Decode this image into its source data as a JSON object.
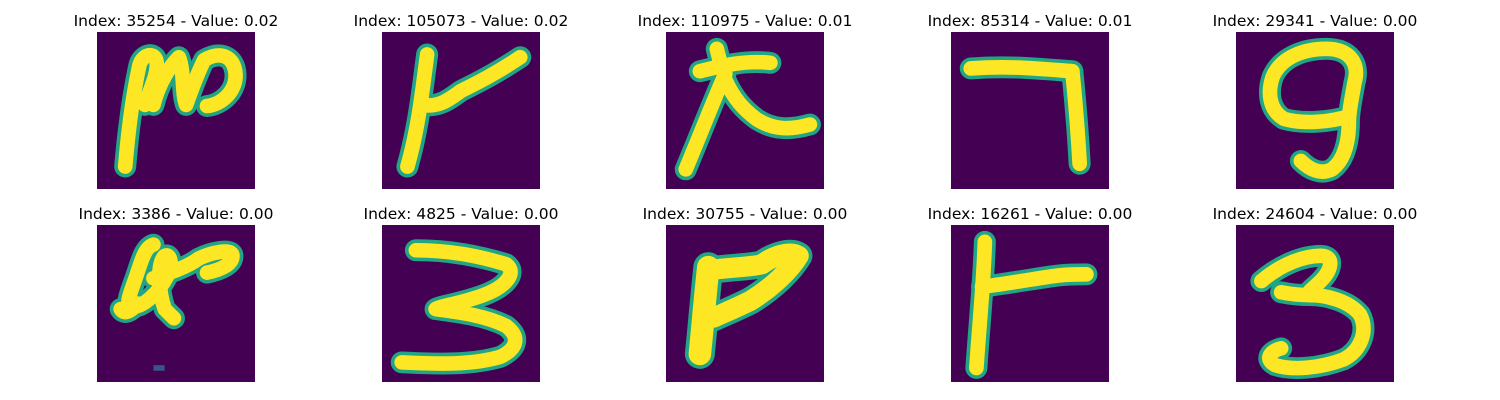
{
  "colors": {
    "background": "#440154",
    "stroke": "#fde725",
    "edge": "#21a585",
    "mid": "#3b528b",
    "title_text": "#000000"
  },
  "panels": [
    {
      "title": "Index: 35254 - Value: 0.02",
      "icon": "handwritten-digit-image"
    },
    {
      "title": "Index: 105073 - Value: 0.02",
      "icon": "handwritten-digit-image"
    },
    {
      "title": "Index: 110975 - Value: 0.01",
      "icon": "handwritten-digit-image"
    },
    {
      "title": "Index: 85314 - Value: 0.01",
      "icon": "handwritten-digit-image"
    },
    {
      "title": "Index: 29341 - Value: 0.00",
      "icon": "handwritten-digit-image"
    },
    {
      "title": "Index: 3386 - Value: 0.00",
      "icon": "handwritten-digit-image"
    },
    {
      "title": "Index: 4825 - Value: 0.00",
      "icon": "handwritten-digit-image"
    },
    {
      "title": "Index: 30755 - Value: 0.00",
      "icon": "handwritten-digit-image"
    },
    {
      "title": "Index: 16261 - Value: 0.00",
      "icon": "handwritten-digit-image"
    },
    {
      "title": "Index: 24604 - Value: 0.00",
      "icon": "handwritten-digit-image"
    }
  ]
}
